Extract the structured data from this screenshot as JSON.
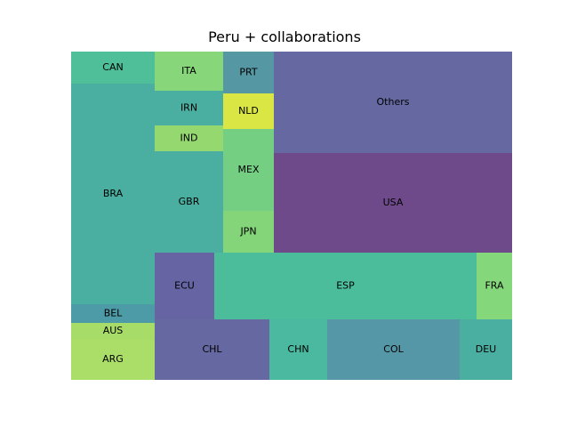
{
  "chart_data": {
    "type": "treemap",
    "title": "Peru + collaborations",
    "tiles": [
      {
        "label": "CAN",
        "color": "#4fbf9a"
      },
      {
        "label": "BRA",
        "color": "#4aaea0"
      },
      {
        "label": "BEL",
        "color": "#4d9ba6"
      },
      {
        "label": "AUS",
        "color": "#a8dc68"
      },
      {
        "label": "ARG",
        "color": "#aade68"
      },
      {
        "label": "ITA",
        "color": "#88d67a"
      },
      {
        "label": "IRN",
        "color": "#4aaea0"
      },
      {
        "label": "IND",
        "color": "#96d870"
      },
      {
        "label": "GBR",
        "color": "#4aaea0"
      },
      {
        "label": "PRT",
        "color": "#5597a3"
      },
      {
        "label": "NLD",
        "color": "#d9e644"
      },
      {
        "label": "MEX",
        "color": "#74cf83"
      },
      {
        "label": "JPN",
        "color": "#84d47a"
      },
      {
        "label": "Others",
        "color": "#6669a1"
      },
      {
        "label": "USA",
        "color": "#6e4a8b"
      },
      {
        "label": "ECU",
        "color": "#6664a3"
      },
      {
        "label": "ESP",
        "color": "#4bbd9b"
      },
      {
        "label": "FRA",
        "color": "#84d77a"
      },
      {
        "label": "CHL",
        "color": "#6669a1"
      },
      {
        "label": "CHN",
        "color": "#4bb8a0"
      },
      {
        "label": "COL",
        "color": "#5597a6"
      },
      {
        "label": "DEU",
        "color": "#4aafa0"
      }
    ]
  }
}
